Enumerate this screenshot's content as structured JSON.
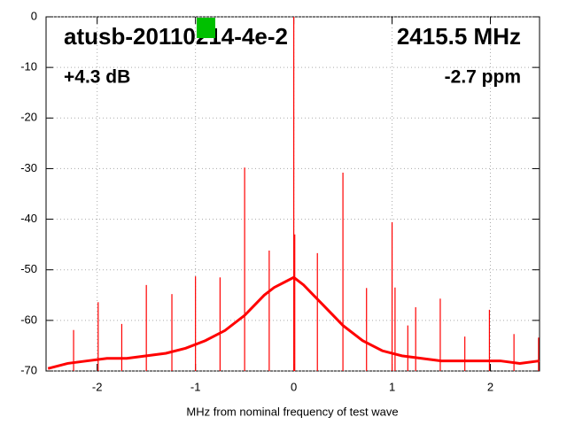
{
  "chart_data": {
    "type": "line",
    "title": "atusb-20110214-4e-2",
    "annotations": [
      "2415.5 MHz",
      "+4.3 dB",
      "-2.7 ppm"
    ],
    "x_label": "MHz from nominal frequency of test wave",
    "xlim": [
      -2.52,
      2.5
    ],
    "ylim": [
      -70,
      0
    ],
    "xticks": [
      -2,
      -1,
      0,
      1,
      2
    ],
    "yticks": [
      0,
      -10,
      -20,
      -30,
      -40,
      -50,
      -60,
      -70
    ],
    "grid": true,
    "series": [
      {
        "color": "#ff0000",
        "x": [
          -2.5,
          -2.3,
          -2.1,
          -1.9,
          -1.7,
          -1.5,
          -1.3,
          -1.1,
          -0.9,
          -0.7,
          -0.5,
          -0.3,
          -0.2,
          -0.1,
          0,
          0.1,
          0.2,
          0.3,
          0.5,
          0.7,
          0.9,
          1.1,
          1.3,
          1.5,
          1.7,
          1.9,
          2.1,
          2.3,
          2.5
        ],
        "values": [
          -69.5,
          -68.5,
          -68,
          -67.5,
          -67.5,
          -67,
          -66.5,
          -65.5,
          -64,
          -62,
          -59,
          -55,
          -53.5,
          -52.5,
          -51.5,
          -53,
          -55,
          -57,
          -61,
          -64,
          -66,
          -67,
          -67.5,
          -68,
          -68,
          -68,
          -68,
          -68.5,
          -68
        ]
      },
      {
        "color": "#ff0000",
        "style": "stem",
        "x": [
          -2.24,
          -1.99,
          -1.75,
          -1.5,
          -1.24,
          -1.0,
          -0.75,
          -0.5,
          -0.25,
          0,
          0.01,
          0.24,
          0.5,
          0.74,
          1.0,
          1.03,
          1.16,
          1.24,
          1.49,
          1.74,
          1.99,
          2.24,
          2.49
        ],
        "values": [
          -61.9,
          -56.4,
          -60.7,
          -53,
          -54.8,
          -51.3,
          -51.5,
          -29.8,
          -46.2,
          0,
          -43,
          -46.7,
          -30.8,
          -53.6,
          -40.6,
          -53.5,
          -61,
          -57.4,
          -55.7,
          -63.2,
          -57.9,
          -62.7,
          -63.4
        ]
      }
    ]
  }
}
